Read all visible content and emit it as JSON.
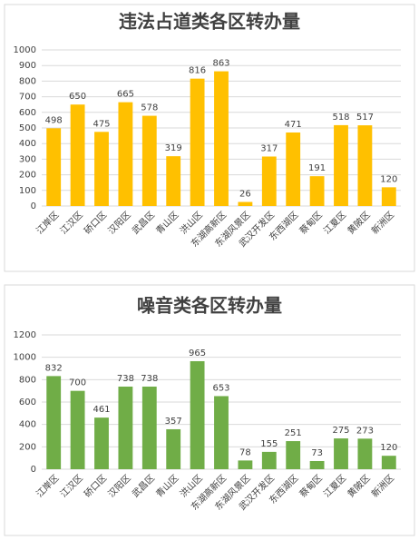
{
  "chart_data": [
    {
      "type": "bar",
      "title": "违法占道类各区转办量",
      "categories": [
        "江岸区",
        "江汉区",
        "硚口区",
        "汉阳区",
        "武昌区",
        "青山区",
        "洪山区",
        "东湖高新区",
        "东湖风景区",
        "武汉开发区",
        "东西湖区",
        "蔡甸区",
        "江夏区",
        "黄陂区",
        "新洲区"
      ],
      "values": [
        498,
        650,
        475,
        665,
        578,
        319,
        816,
        863,
        26,
        317,
        471,
        191,
        518,
        517,
        120
      ],
      "color": "#ffc000",
      "ylim": [
        0,
        1000
      ],
      "yticks": [
        0,
        100,
        200,
        300,
        400,
        500,
        600,
        700,
        800,
        900,
        1000
      ],
      "grid": true
    },
    {
      "type": "bar",
      "title": "噪音类各区转办量",
      "categories": [
        "江岸区",
        "江汉区",
        "硚口区",
        "汉阳区",
        "武昌区",
        "青山区",
        "洪山区",
        "东湖高新区",
        "东湖风景区",
        "武汉开发区",
        "东西湖区",
        "蔡甸区",
        "江夏区",
        "黄陂区",
        "新洲区"
      ],
      "values": [
        832,
        700,
        461,
        738,
        738,
        357,
        965,
        653,
        78,
        155,
        251,
        73,
        275,
        273,
        120
      ],
      "color": "#70ad47",
      "ylim": [
        0,
        1200
      ],
      "yticks": [
        0,
        200,
        400,
        600,
        800,
        1000,
        1200
      ],
      "grid": true
    }
  ]
}
